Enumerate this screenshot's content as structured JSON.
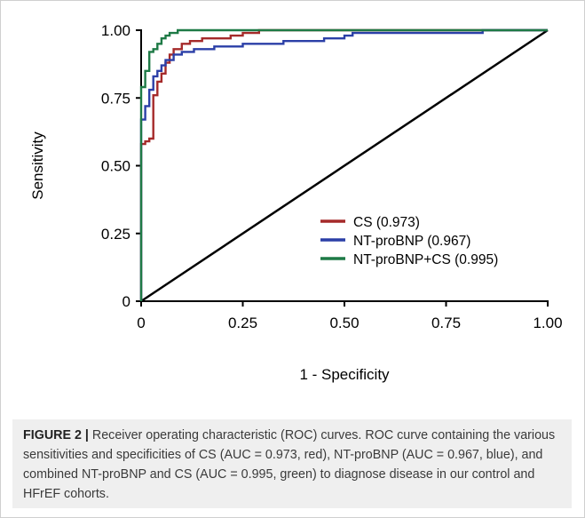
{
  "chart_data": {
    "type": "line",
    "xlabel": "1 - Specificity",
    "ylabel": "Sensitivity",
    "xlim": [
      0,
      1
    ],
    "ylim": [
      0,
      1
    ],
    "x_ticks": [
      "0",
      "0.25",
      "0.50",
      "0.75",
      "1.00"
    ],
    "y_ticks": [
      "0",
      "0.25",
      "0.50",
      "0.75",
      "1.00"
    ],
    "grid": false,
    "legend_position": "bottom-right",
    "diagonal_reference": [
      [
        0,
        0
      ],
      [
        1,
        1
      ]
    ],
    "series": [
      {
        "name": "CS (0.973)",
        "color": "#a52a2a",
        "points": [
          [
            0,
            0
          ],
          [
            0,
            0.58
          ],
          [
            0.01,
            0.58
          ],
          [
            0.01,
            0.59
          ],
          [
            0.02,
            0.59
          ],
          [
            0.02,
            0.6
          ],
          [
            0.03,
            0.6
          ],
          [
            0.03,
            0.76
          ],
          [
            0.04,
            0.76
          ],
          [
            0.04,
            0.81
          ],
          [
            0.05,
            0.81
          ],
          [
            0.05,
            0.84
          ],
          [
            0.06,
            0.84
          ],
          [
            0.06,
            0.88
          ],
          [
            0.07,
            0.88
          ],
          [
            0.07,
            0.91
          ],
          [
            0.08,
            0.91
          ],
          [
            0.08,
            0.93
          ],
          [
            0.1,
            0.93
          ],
          [
            0.1,
            0.95
          ],
          [
            0.12,
            0.95
          ],
          [
            0.12,
            0.96
          ],
          [
            0.15,
            0.96
          ],
          [
            0.15,
            0.97
          ],
          [
            0.22,
            0.97
          ],
          [
            0.22,
            0.98
          ],
          [
            0.25,
            0.98
          ],
          [
            0.25,
            0.99
          ],
          [
            0.29,
            0.99
          ],
          [
            0.29,
            1.0
          ],
          [
            0.32,
            1.0
          ],
          [
            1.0,
            1.0
          ]
        ]
      },
      {
        "name": "NT-proBNP (0.967)",
        "color": "#2b3fa7",
        "points": [
          [
            0,
            0
          ],
          [
            0,
            0.67
          ],
          [
            0.01,
            0.67
          ],
          [
            0.01,
            0.72
          ],
          [
            0.02,
            0.72
          ],
          [
            0.02,
            0.78
          ],
          [
            0.03,
            0.78
          ],
          [
            0.03,
            0.83
          ],
          [
            0.04,
            0.83
          ],
          [
            0.04,
            0.85
          ],
          [
            0.05,
            0.85
          ],
          [
            0.05,
            0.87
          ],
          [
            0.06,
            0.87
          ],
          [
            0.06,
            0.89
          ],
          [
            0.08,
            0.89
          ],
          [
            0.08,
            0.91
          ],
          [
            0.1,
            0.91
          ],
          [
            0.1,
            0.92
          ],
          [
            0.13,
            0.92
          ],
          [
            0.13,
            0.93
          ],
          [
            0.18,
            0.93
          ],
          [
            0.18,
            0.94
          ],
          [
            0.25,
            0.94
          ],
          [
            0.25,
            0.95
          ],
          [
            0.35,
            0.95
          ],
          [
            0.35,
            0.96
          ],
          [
            0.45,
            0.96
          ],
          [
            0.45,
            0.97
          ],
          [
            0.5,
            0.97
          ],
          [
            0.5,
            0.98
          ],
          [
            0.52,
            0.98
          ],
          [
            0.52,
            0.99
          ],
          [
            0.84,
            0.99
          ],
          [
            0.84,
            1.0
          ],
          [
            1.0,
            1.0
          ]
        ]
      },
      {
        "name": "NT-proBNP+CS (0.995)",
        "color": "#1e7a46",
        "points": [
          [
            0,
            0
          ],
          [
            0,
            0.79
          ],
          [
            0.01,
            0.79
          ],
          [
            0.01,
            0.85
          ],
          [
            0.02,
            0.85
          ],
          [
            0.02,
            0.92
          ],
          [
            0.03,
            0.92
          ],
          [
            0.03,
            0.93
          ],
          [
            0.04,
            0.93
          ],
          [
            0.04,
            0.95
          ],
          [
            0.05,
            0.95
          ],
          [
            0.05,
            0.97
          ],
          [
            0.06,
            0.97
          ],
          [
            0.06,
            0.98
          ],
          [
            0.07,
            0.98
          ],
          [
            0.07,
            0.99
          ],
          [
            0.09,
            0.99
          ],
          [
            0.09,
            1.0
          ],
          [
            1.0,
            1.0
          ]
        ]
      }
    ]
  },
  "caption": {
    "lead": "FIGURE 2 |",
    "text": " Receiver operating characteristic (ROC) curves. ROC curve containing the various sensitivities and specificities of CS (AUC = 0.973, red), NT-proBNP (AUC = 0.967, blue), and combined NT-proBNP and CS (AUC = 0.995, green) to diagnose disease in our control and HFrEF cohorts."
  }
}
